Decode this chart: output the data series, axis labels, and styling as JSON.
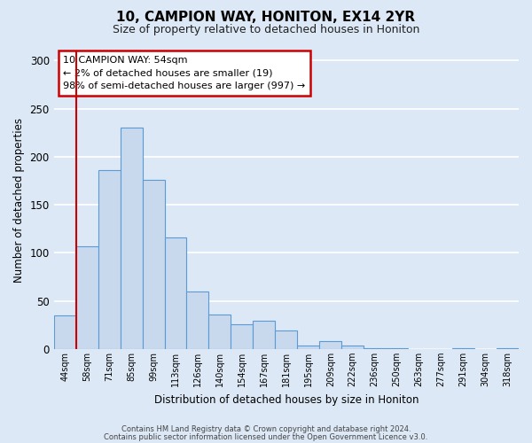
{
  "title": "10, CAMPION WAY, HONITON, EX14 2YR",
  "subtitle": "Size of property relative to detached houses in Honiton",
  "xlabel": "Distribution of detached houses by size in Honiton",
  "ylabel": "Number of detached properties",
  "bar_labels": [
    "44sqm",
    "58sqm",
    "71sqm",
    "85sqm",
    "99sqm",
    "113sqm",
    "126sqm",
    "140sqm",
    "154sqm",
    "167sqm",
    "181sqm",
    "195sqm",
    "209sqm",
    "222sqm",
    "236sqm",
    "250sqm",
    "263sqm",
    "277sqm",
    "291sqm",
    "304sqm",
    "318sqm"
  ],
  "bar_heights": [
    35,
    107,
    186,
    230,
    176,
    116,
    60,
    36,
    26,
    29,
    19,
    4,
    8,
    4,
    1,
    1,
    0,
    0,
    1,
    0,
    1
  ],
  "bar_color": "#c8d9ee",
  "bar_edge_color": "#5b9bd5",
  "ylim": [
    0,
    310
  ],
  "yticks": [
    0,
    50,
    100,
    150,
    200,
    250,
    300
  ],
  "vline_color": "#cc0000",
  "annotation_title": "10 CAMPION WAY: 54sqm",
  "annotation_line1": "← 2% of detached houses are smaller (19)",
  "annotation_line2": "98% of semi-detached houses are larger (997) →",
  "annotation_box_color": "#cc0000",
  "footer1": "Contains HM Land Registry data © Crown copyright and database right 2024.",
  "footer2": "Contains public sector information licensed under the Open Government Licence v3.0.",
  "bg_color": "#dce8f5"
}
